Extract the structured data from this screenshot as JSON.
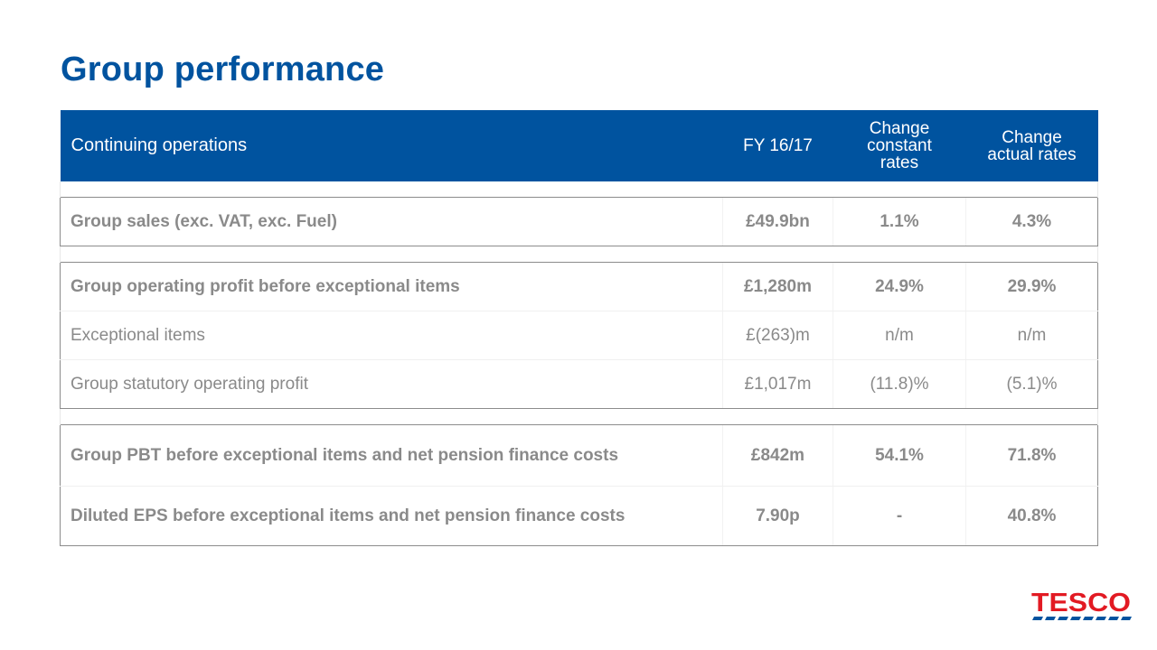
{
  "colors": {
    "brand": "#00539f",
    "logo_red": "#e21a23"
  },
  "page": {
    "title": "Group performance"
  },
  "table": {
    "headers": [
      "Continuing operations",
      "FY 16/17",
      "Change constant rates",
      "Change actual rates"
    ],
    "header_lines": {
      "constant": [
        "Change",
        "constant",
        "rates"
      ],
      "actual": [
        "Change",
        "actual rates"
      ]
    },
    "rows": [
      {
        "label": "Group sales (exc. VAT, exc. Fuel)",
        "fy": "£49.9bn",
        "constant": "1.1%",
        "actual": "4.3%"
      },
      {
        "label": "Group operating profit before exceptional items",
        "fy": "£1,280m",
        "constant": "24.9%",
        "actual": "29.9%"
      },
      {
        "label": "Exceptional items",
        "fy": "£(263)m",
        "constant": "n/m",
        "actual": "n/m"
      },
      {
        "label": "Group statutory operating profit",
        "fy": "£1,017m",
        "constant": "(11.8)%",
        "actual": "(5.1)%"
      },
      {
        "label": "Group PBT before exceptional items and net pension finance costs",
        "fy": "£842m",
        "constant": "54.1%",
        "actual": "71.8%"
      },
      {
        "label": "Diluted EPS before exceptional items and net pension finance costs",
        "fy": "7.90p",
        "constant": "-",
        "actual": "40.8%"
      }
    ]
  },
  "logo": {
    "text": "TESCO",
    "icon": "tesco-logo"
  }
}
